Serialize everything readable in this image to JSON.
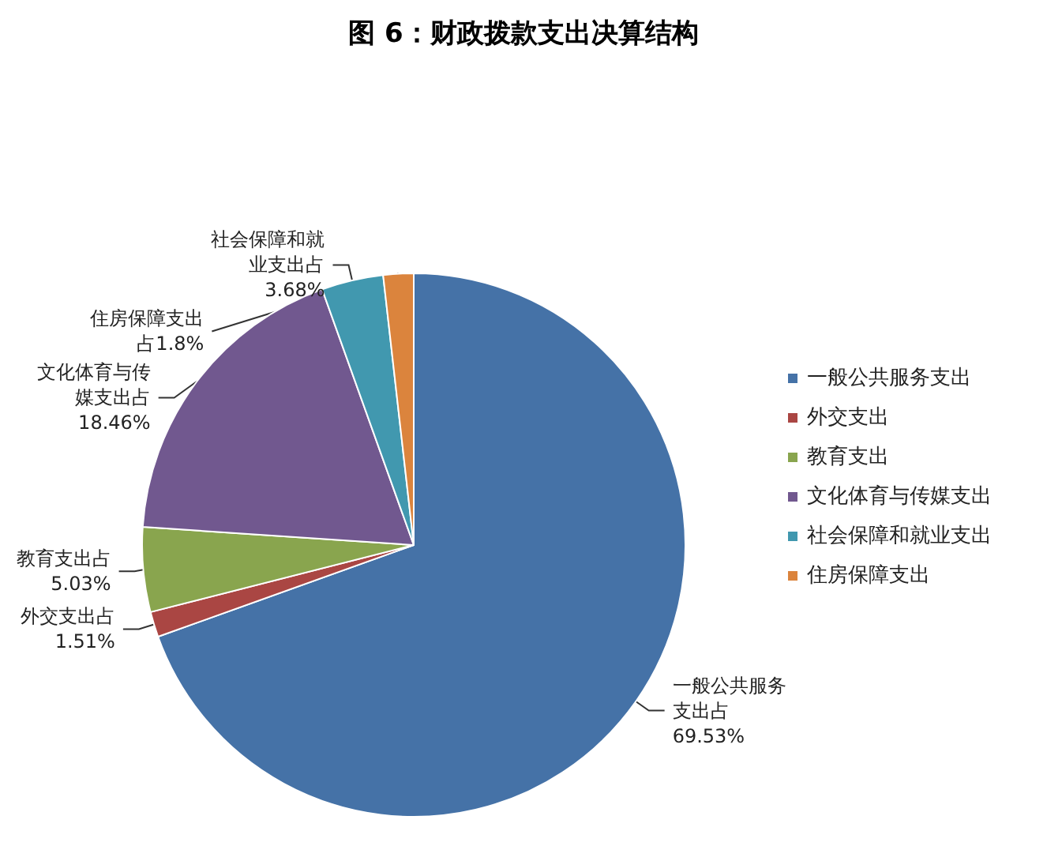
{
  "chart_data": {
    "type": "pie",
    "title": "图 6：财政拨款支出决算结构",
    "categories": [
      "一般公共服务支出",
      "外交支出",
      "教育支出",
      "文化体育与传媒支出",
      "社会保障和就业支出",
      "住房保障支出"
    ],
    "values": [
      69.53,
      1.51,
      5.03,
      18.46,
      3.68,
      1.8
    ],
    "colors": [
      "#4572a7",
      "#aa4643",
      "#89a54e",
      "#71588f",
      "#4198af",
      "#db843d"
    ],
    "value_labels": [
      "一般公共服务支出占69.53%",
      "外交支出占1.51%",
      "教育支出占5.03%",
      "文化体育与传媒支出占18.46%",
      "社会保障和就业支出占3.68%",
      "住房保障支出占1.8%"
    ],
    "legend": "right"
  }
}
